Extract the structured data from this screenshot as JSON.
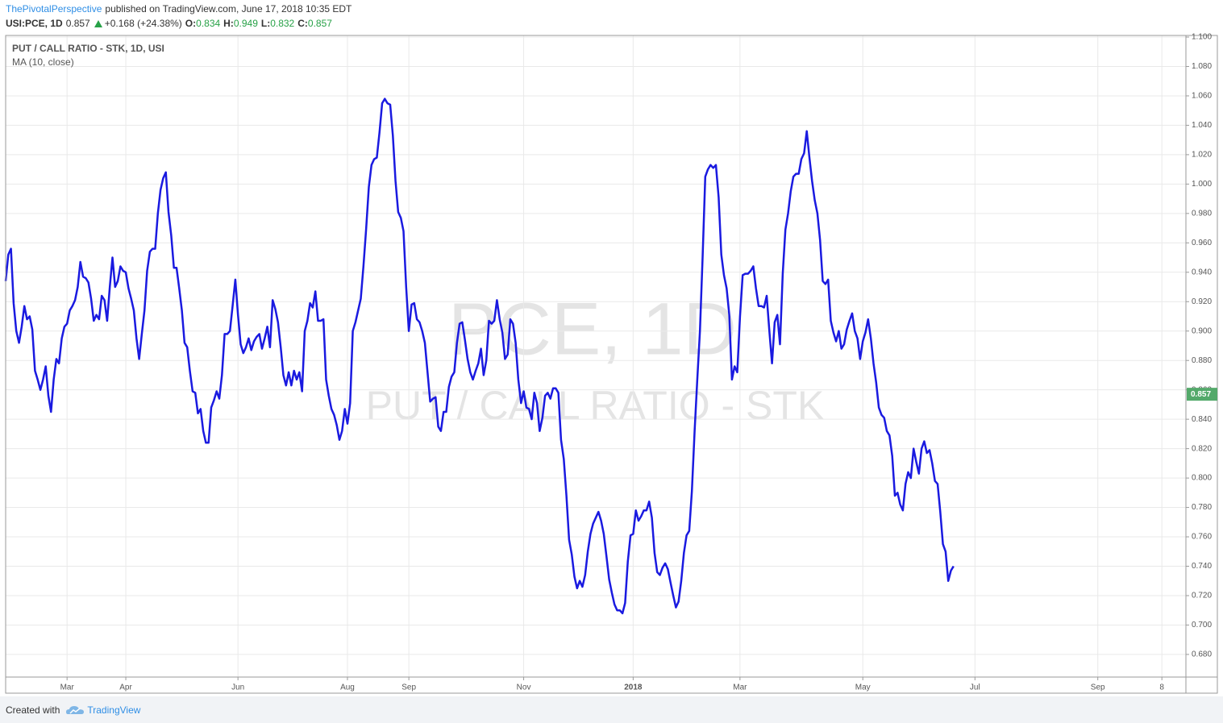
{
  "header": {
    "author": "ThePivotalPerspective",
    "published": "published on TradingView.com, June 17, 2018 10:35 EDT",
    "symbol": "USI:PCE, 1D",
    "last": "0.857",
    "change": "+0.168 (+24.38%)",
    "ohlc": [
      {
        "label": "O:",
        "value": "0.834"
      },
      {
        "label": "H:",
        "value": "0.949"
      },
      {
        "label": "L:",
        "value": "0.832"
      },
      {
        "label": "C:",
        "value": "0.857"
      }
    ]
  },
  "chart_data": {
    "type": "line",
    "title": "PUT / CALL RATIO - STK, 1D, USI",
    "watermark": [
      "PCE, 1D",
      "PUT / CALL RATIO - STK"
    ],
    "series": [
      {
        "name": "MA (10, close)",
        "color": "#1a1ae0",
        "values": [
          0.934,
          0.952,
          0.956,
          0.919,
          0.9,
          0.892,
          0.903,
          0.917,
          0.908,
          0.91,
          0.901,
          0.873,
          0.867,
          0.86,
          0.867,
          0.876,
          0.856,
          0.845,
          0.867,
          0.881,
          0.878,
          0.895,
          0.903,
          0.905,
          0.914,
          0.917,
          0.921,
          0.93,
          0.947,
          0.937,
          0.936,
          0.933,
          0.922,
          0.907,
          0.911,
          0.908,
          0.924,
          0.921,
          0.907,
          0.93,
          0.95,
          0.93,
          0.934,
          0.944,
          0.941,
          0.94,
          0.929,
          0.922,
          0.914,
          0.895,
          0.881,
          0.898,
          0.914,
          0.941,
          0.954,
          0.956,
          0.956,
          0.98,
          0.996,
          1.004,
          1.008,
          0.981,
          0.965,
          0.943,
          0.943,
          0.929,
          0.914,
          0.892,
          0.889,
          0.873,
          0.859,
          0.858,
          0.844,
          0.847,
          0.832,
          0.824,
          0.824,
          0.848,
          0.853,
          0.859,
          0.854,
          0.87,
          0.898,
          0.898,
          0.9,
          0.917,
          0.935,
          0.911,
          0.891,
          0.885,
          0.889,
          0.895,
          0.887,
          0.893,
          0.896,
          0.898,
          0.888,
          0.895,
          0.903,
          0.889,
          0.921,
          0.915,
          0.906,
          0.889,
          0.87,
          0.863,
          0.872,
          0.863,
          0.873,
          0.867,
          0.872,
          0.859,
          0.9,
          0.907,
          0.919,
          0.916,
          0.927,
          0.907,
          0.907,
          0.908,
          0.867,
          0.856,
          0.847,
          0.843,
          0.836,
          0.826,
          0.832,
          0.847,
          0.837,
          0.851,
          0.9,
          0.906,
          0.914,
          0.922,
          0.944,
          0.969,
          0.998,
          1.013,
          1.017,
          1.018,
          1.035,
          1.055,
          1.058,
          1.055,
          1.054,
          1.033,
          1.002,
          0.981,
          0.977,
          0.968,
          0.93,
          0.9,
          0.918,
          0.919,
          0.908,
          0.906,
          0.9,
          0.892,
          0.872,
          0.852,
          0.854,
          0.855,
          0.835,
          0.832,
          0.845,
          0.845,
          0.862,
          0.869,
          0.872,
          0.892,
          0.905,
          0.906,
          0.894,
          0.881,
          0.872,
          0.867,
          0.873,
          0.878,
          0.888,
          0.87,
          0.88,
          0.907,
          0.905,
          0.907,
          0.921,
          0.908,
          0.899,
          0.881,
          0.884,
          0.908,
          0.905,
          0.892,
          0.867,
          0.851,
          0.859,
          0.848,
          0.847,
          0.84,
          0.858,
          0.851,
          0.832,
          0.841,
          0.856,
          0.858,
          0.854,
          0.861,
          0.861,
          0.858,
          0.826,
          0.813,
          0.788,
          0.758,
          0.748,
          0.733,
          0.725,
          0.73,
          0.726,
          0.734,
          0.75,
          0.762,
          0.769,
          0.773,
          0.777,
          0.771,
          0.762,
          0.747,
          0.731,
          0.722,
          0.714,
          0.71,
          0.71,
          0.708,
          0.715,
          0.743,
          0.761,
          0.762,
          0.778,
          0.771,
          0.774,
          0.778,
          0.778,
          0.784,
          0.773,
          0.749,
          0.736,
          0.734,
          0.739,
          0.742,
          0.738,
          0.729,
          0.72,
          0.712,
          0.716,
          0.73,
          0.749,
          0.761,
          0.764,
          0.791,
          0.832,
          0.867,
          0.9,
          0.95,
          1.005,
          1.01,
          1.013,
          1.011,
          1.013,
          0.991,
          0.952,
          0.938,
          0.929,
          0.911,
          0.867,
          0.876,
          0.872,
          0.91,
          0.938,
          0.939,
          0.939,
          0.941,
          0.944,
          0.929,
          0.917,
          0.917,
          0.916,
          0.924,
          0.9,
          0.878,
          0.906,
          0.911,
          0.891,
          0.939,
          0.969,
          0.98,
          0.995,
          1.005,
          1.007,
          1.007,
          1.017,
          1.021,
          1.036,
          1.018,
          1.002,
          0.989,
          0.98,
          0.962,
          0.934,
          0.932,
          0.935,
          0.907,
          0.899,
          0.893,
          0.9,
          0.888,
          0.891,
          0.901,
          0.907,
          0.912,
          0.9,
          0.895,
          0.881,
          0.893,
          0.899,
          0.908,
          0.895,
          0.878,
          0.865,
          0.848,
          0.843,
          0.841,
          0.832,
          0.829,
          0.815,
          0.788,
          0.79,
          0.782,
          0.778,
          0.796,
          0.804,
          0.8,
          0.82,
          0.811,
          0.803,
          0.82,
          0.825,
          0.817,
          0.819,
          0.81,
          0.798,
          0.796,
          0.777,
          0.755,
          0.75,
          0.73,
          0.737,
          0.74
        ]
      }
    ],
    "xlim": [
      0,
      442
    ],
    "xticks": [
      {
        "value": 23,
        "label": "Mar"
      },
      {
        "value": 45,
        "label": "Apr"
      },
      {
        "value": 87,
        "label": "Jun"
      },
      {
        "value": 128,
        "label": "Aug"
      },
      {
        "value": 151,
        "label": "Sep"
      },
      {
        "value": 194,
        "label": "Nov"
      },
      {
        "value": 235,
        "label": "2018"
      },
      {
        "value": 275,
        "label": "Mar"
      },
      {
        "value": 321,
        "label": "May"
      },
      {
        "value": 363,
        "label": "Jul"
      },
      {
        "value": 409,
        "label": "Sep"
      },
      {
        "value": 433,
        "label": "8"
      }
    ],
    "ylim": [
      0.6646,
      1.1011
    ],
    "yticks": [
      {
        "value": 0.68,
        "label": "0.680"
      },
      {
        "value": 0.7,
        "label": "0.700"
      },
      {
        "value": 0.72,
        "label": "0.720"
      },
      {
        "value": 0.74,
        "label": "0.740"
      },
      {
        "value": 0.76,
        "label": "0.760"
      },
      {
        "value": 0.78,
        "label": "0.780"
      },
      {
        "value": 0.8,
        "label": "0.800"
      },
      {
        "value": 0.82,
        "label": "0.820"
      },
      {
        "value": 0.84,
        "label": "0.840"
      },
      {
        "value": 0.86,
        "label": "0.860"
      },
      {
        "value": 0.88,
        "label": "0.880"
      },
      {
        "value": 0.9,
        "label": "0.900"
      },
      {
        "value": 0.92,
        "label": "0.920"
      },
      {
        "value": 0.94,
        "label": "0.940"
      },
      {
        "value": 0.96,
        "label": "0.960"
      },
      {
        "value": 0.98,
        "label": "0.980"
      },
      {
        "value": 1.0,
        "label": "1.000"
      },
      {
        "value": 1.02,
        "label": "1.020"
      },
      {
        "value": 1.04,
        "label": "1.040"
      },
      {
        "value": 1.06,
        "label": "1.060"
      },
      {
        "value": 1.08,
        "label": "1.080"
      },
      {
        "value": 1.1,
        "label": "1.100"
      }
    ],
    "grid": true,
    "price_label": 0.857,
    "price_label_color": "#53a96a"
  },
  "footer": {
    "created_with": "Created with",
    "brand": "TradingView"
  }
}
